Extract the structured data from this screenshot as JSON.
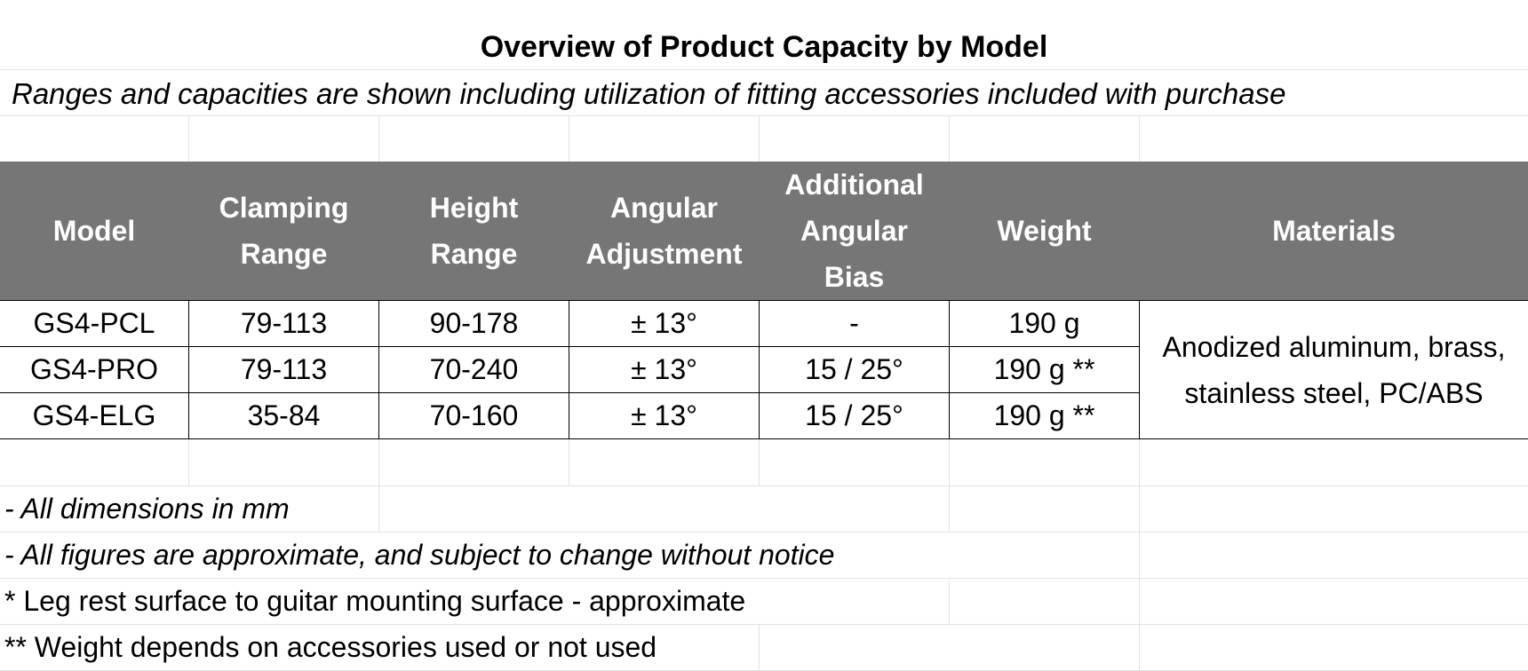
{
  "title": "Overview of Product Capacity by Model",
  "subtitle": "Ranges and capacities are shown including utilization of fitting accessories included with purchase",
  "table": {
    "headers": [
      "Model",
      "Clamping Range",
      "Height Range",
      "Angular Adjustment",
      "Additional Angular Bias",
      "Weight",
      "Materials"
    ],
    "rows": [
      {
        "model": "GS4-PCL",
        "clamping": "79-113",
        "height": "90-178",
        "angular": "± 13°",
        "bias": "-",
        "weight": "190 g"
      },
      {
        "model": "GS4-PRO",
        "clamping": "79-113",
        "height": "70-240",
        "angular": "± 13°",
        "bias": "15 / 25°",
        "weight": "190 g **"
      },
      {
        "model": "GS4-ELG",
        "clamping": "35-84",
        "height": "70-160",
        "angular": "± 13°",
        "bias": "15 / 25°",
        "weight": "190 g **"
      }
    ],
    "materials": "Anodized aluminum, brass, stainless steel, PC/ABS"
  },
  "notes": [
    " - All dimensions in mm",
    " - All figures are approximate, and subject to change without notice",
    "* Leg rest surface to guitar mounting surface - approximate",
    "** Weight depends on accessories used or not used"
  ]
}
